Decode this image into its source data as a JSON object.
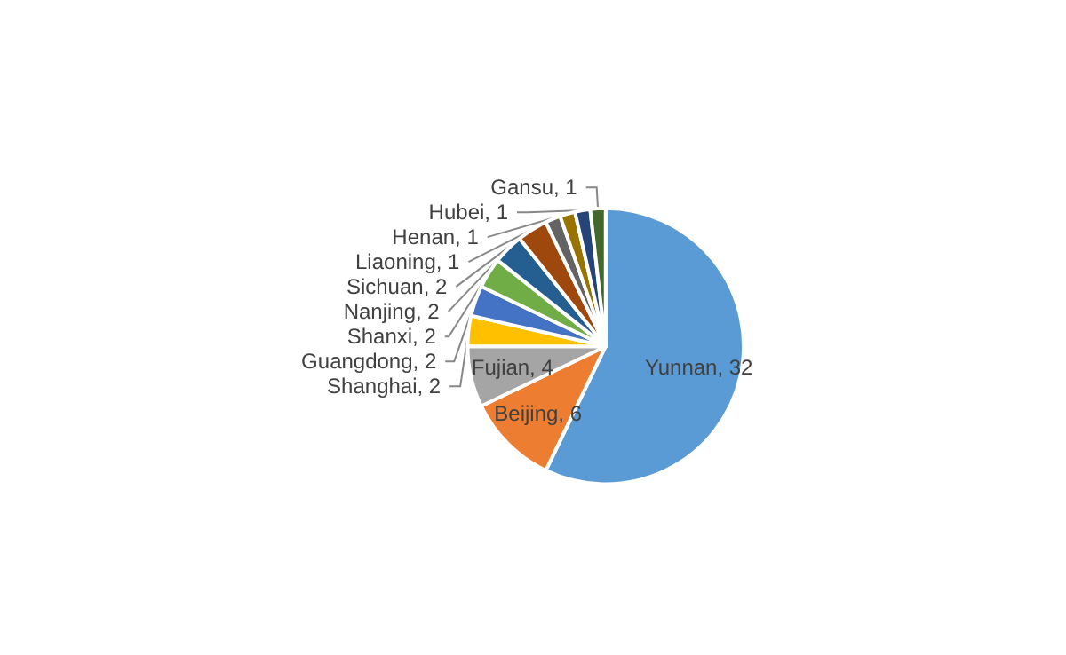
{
  "chart_data": {
    "type": "pie",
    "categories": [
      "Yunnan",
      "Beijing",
      "Fujian",
      "Shanghai",
      "Guangdong",
      "Shanxi",
      "Nanjing",
      "Sichuan",
      "Liaoning",
      "Henan",
      "Hubei",
      "Gansu"
    ],
    "values": [
      32,
      6,
      4,
      2,
      2,
      2,
      2,
      2,
      1,
      1,
      1,
      1
    ],
    "colors": [
      "#5b9bd5",
      "#ed7d31",
      "#a5a5a5",
      "#ffc000",
      "#4472c4",
      "#70ad47",
      "#255e91",
      "#9e480e",
      "#636363",
      "#997300",
      "#264478",
      "#43682b"
    ],
    "value_labels": [
      ", 32",
      ", 6",
      ", 4",
      ", 2",
      ", 2",
      ", 2",
      ", 2",
      ", 2",
      ", 1",
      ", 1",
      ", 1",
      ", 1"
    ],
    "legend": false
  }
}
